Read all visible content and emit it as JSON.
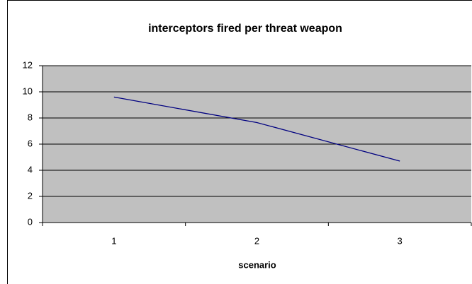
{
  "chart_data": {
    "type": "line",
    "title": "interceptors fired per threat weapon",
    "x_label": "scenario",
    "categories": [
      "1",
      "2",
      "3"
    ],
    "series": [
      {
        "name": "interceptors fired",
        "color": "#000080",
        "values": [
          9.6,
          7.65,
          4.7
        ]
      }
    ],
    "ylim": [
      0,
      12
    ],
    "yticks": [
      0,
      2,
      4,
      6,
      8,
      10,
      12
    ],
    "grid": true,
    "plot_background": "#c0c0c0"
  }
}
